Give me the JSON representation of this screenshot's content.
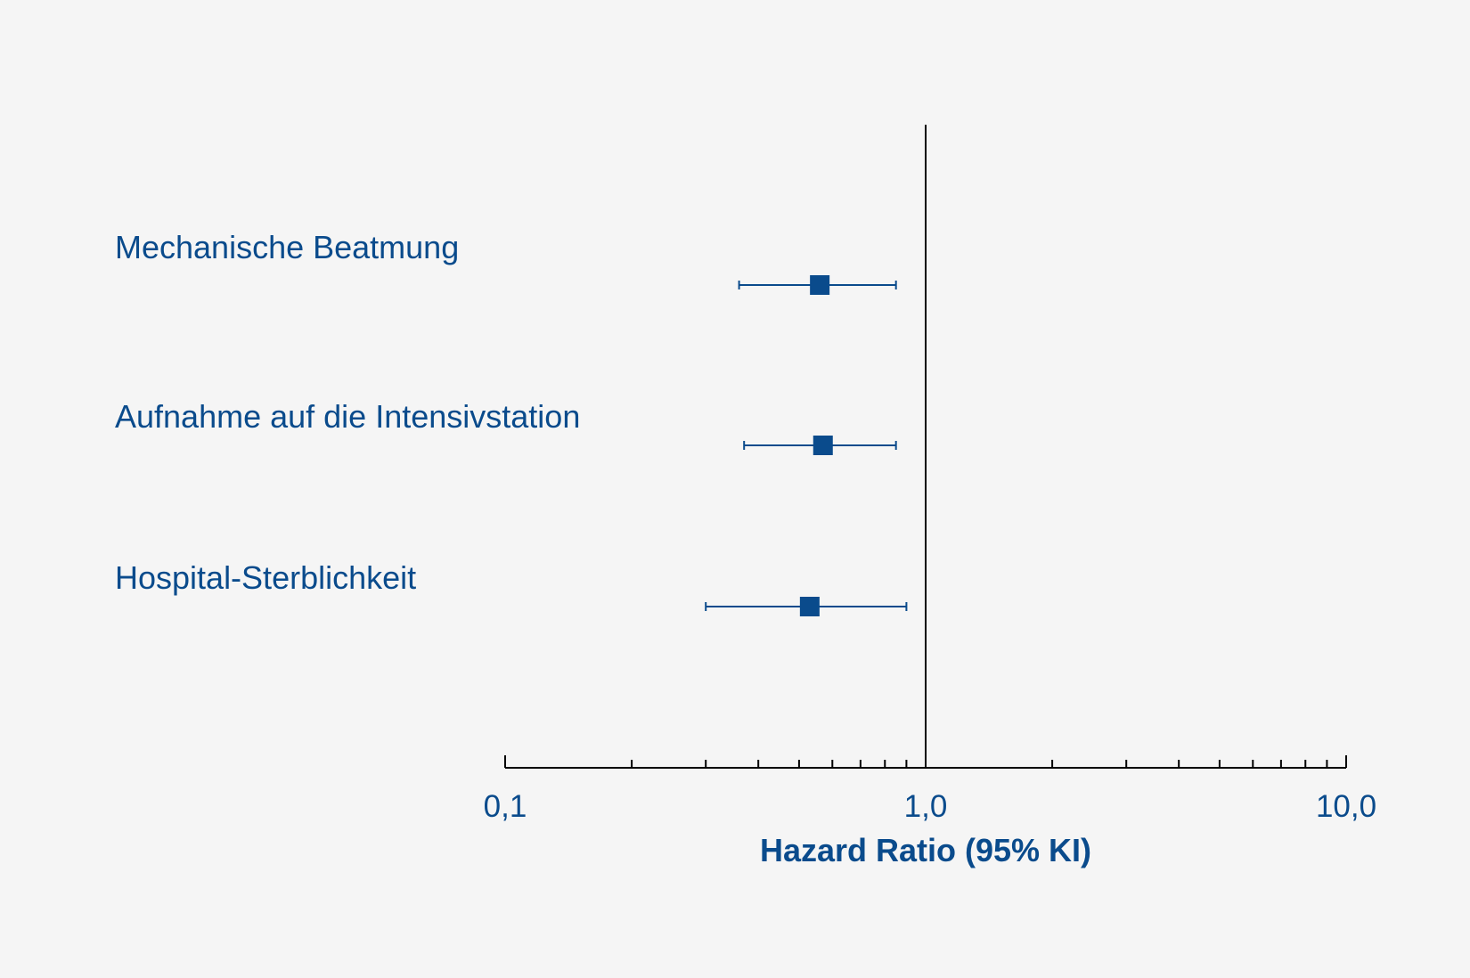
{
  "chart_data": {
    "type": "scatter",
    "title": "",
    "xlabel": "Hazard Ratio (95% KI)",
    "ylabel": "",
    "x_scale": "log",
    "xlim": [
      0.1,
      10.0
    ],
    "x_ticks": [
      {
        "value": 0.1,
        "label": "0,1"
      },
      {
        "value": 1.0,
        "label": "1,0"
      },
      {
        "value": 10.0,
        "label": "10,0"
      }
    ],
    "reference_line": 1.0,
    "grid": false,
    "legend": "none",
    "rows": [
      {
        "label": "Mechanische Beatmung",
        "hr": 0.56,
        "ci_low": 0.36,
        "ci_high": 0.85
      },
      {
        "label": "Aufnahme auf die Intensivstation",
        "hr": 0.57,
        "ci_low": 0.37,
        "ci_high": 0.85
      },
      {
        "label": "Hospital-Sterblichkeit",
        "hr": 0.53,
        "ci_low": 0.3,
        "ci_high": 0.9
      }
    ]
  },
  "colors": {
    "marker": "#0a4b8c",
    "text": "#0a4b8c",
    "axis": "#000000",
    "background": "#f5f5f5"
  }
}
